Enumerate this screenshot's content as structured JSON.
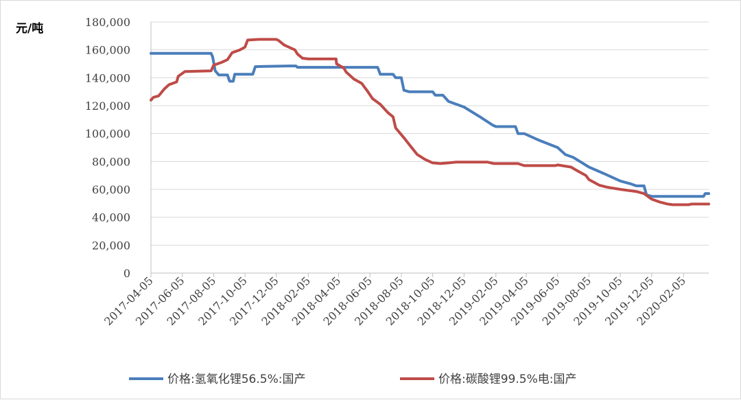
{
  "chart_data": {
    "type": "line",
    "ylabel": "元/吨",
    "ylim": [
      0,
      180000
    ],
    "yticks": [
      0,
      20000,
      40000,
      60000,
      80000,
      100000,
      120000,
      140000,
      160000,
      180000
    ],
    "ytick_labels": [
      "0",
      "20,000",
      "40,000",
      "60,000",
      "80,000",
      "100,000",
      "120,000",
      "140,000",
      "160,000",
      "180,000"
    ],
    "xlim": [
      "2017-04-05",
      "2020-03-25"
    ],
    "xticks": [
      "2017-04-05",
      "2017-06-05",
      "2017-08-05",
      "2017-10-05",
      "2017-12-05",
      "2018-02-05",
      "2018-04-05",
      "2018-06-05",
      "2018-08-05",
      "2018-10-05",
      "2018-12-05",
      "2019-02-05",
      "2019-04-05",
      "2019-06-05",
      "2019-08-05",
      "2019-10-05",
      "2019-12-05",
      "2020-02-05"
    ],
    "grid": "horizontal",
    "legend_position": "bottom",
    "series": [
      {
        "name": "价格:氢氧化锂56.5%:国产",
        "color": "#4a7ebb",
        "points": [
          [
            "2017-04-05",
            157500
          ],
          [
            "2017-07-31",
            157500
          ],
          [
            "2017-08-03",
            155000
          ],
          [
            "2017-08-08",
            145000
          ],
          [
            "2017-08-15",
            142000
          ],
          [
            "2017-09-01",
            142000
          ],
          [
            "2017-09-05",
            137500
          ],
          [
            "2017-09-12",
            137500
          ],
          [
            "2017-09-15",
            142500
          ],
          [
            "2017-10-20",
            142500
          ],
          [
            "2017-10-25",
            148000
          ],
          [
            "2017-12-31",
            148500
          ],
          [
            "2018-01-12",
            148500
          ],
          [
            "2018-01-15",
            147500
          ],
          [
            "2018-06-20",
            147500
          ],
          [
            "2018-06-25",
            142500
          ],
          [
            "2018-07-20",
            142500
          ],
          [
            "2018-07-25",
            140000
          ],
          [
            "2018-08-05",
            140000
          ],
          [
            "2018-08-10",
            131000
          ],
          [
            "2018-08-20",
            130000
          ],
          [
            "2018-10-05",
            130000
          ],
          [
            "2018-10-10",
            127500
          ],
          [
            "2018-10-25",
            127500
          ],
          [
            "2018-11-05",
            123000
          ],
          [
            "2018-12-05",
            119000
          ],
          [
            "2019-01-05",
            112000
          ],
          [
            "2019-01-30",
            106000
          ],
          [
            "2019-02-05",
            105000
          ],
          [
            "2019-03-15",
            105000
          ],
          [
            "2019-03-20",
            100000
          ],
          [
            "2019-04-01",
            100000
          ],
          [
            "2019-05-01",
            95000
          ],
          [
            "2019-06-05",
            90000
          ],
          [
            "2019-06-20",
            85000
          ],
          [
            "2019-07-05",
            83000
          ],
          [
            "2019-08-05",
            76000
          ],
          [
            "2019-09-05",
            71000
          ],
          [
            "2019-10-05",
            66000
          ],
          [
            "2019-10-25",
            64000
          ],
          [
            "2019-11-05",
            62500
          ],
          [
            "2019-11-20",
            62500
          ],
          [
            "2019-11-25",
            56000
          ],
          [
            "2019-12-05",
            55000
          ],
          [
            "2020-03-15",
            55000
          ],
          [
            "2020-03-18",
            57000
          ],
          [
            "2020-03-25",
            57000
          ]
        ]
      },
      {
        "name": "价格:碳酸锂99.5%电:国产",
        "color": "#be4b48",
        "points": [
          [
            "2017-04-05",
            124000
          ],
          [
            "2017-04-10",
            126000
          ],
          [
            "2017-04-20",
            127000
          ],
          [
            "2017-05-01",
            132000
          ],
          [
            "2017-05-10",
            135000
          ],
          [
            "2017-05-25",
            137000
          ],
          [
            "2017-05-28",
            141000
          ],
          [
            "2017-06-10",
            144500
          ],
          [
            "2017-07-31",
            145000
          ],
          [
            "2017-08-05",
            149000
          ],
          [
            "2017-08-20",
            151000
          ],
          [
            "2017-09-01",
            153000
          ],
          [
            "2017-09-10",
            158000
          ],
          [
            "2017-09-25",
            160000
          ],
          [
            "2017-10-05",
            162000
          ],
          [
            "2017-10-10",
            167000
          ],
          [
            "2017-11-01",
            167500
          ],
          [
            "2017-12-05",
            167500
          ],
          [
            "2017-12-10",
            166500
          ],
          [
            "2017-12-20",
            163500
          ],
          [
            "2018-01-10",
            160000
          ],
          [
            "2018-01-15",
            157000
          ],
          [
            "2018-01-25",
            154000
          ],
          [
            "2018-02-05",
            153500
          ],
          [
            "2018-03-31",
            153500
          ],
          [
            "2018-04-01",
            150000
          ],
          [
            "2018-04-15",
            147000
          ],
          [
            "2018-04-20",
            144000
          ],
          [
            "2018-05-05",
            139000
          ],
          [
            "2018-05-20",
            136000
          ],
          [
            "2018-06-01",
            130000
          ],
          [
            "2018-06-10",
            125000
          ],
          [
            "2018-06-25",
            121000
          ],
          [
            "2018-07-10",
            115000
          ],
          [
            "2018-07-20",
            112000
          ],
          [
            "2018-07-25",
            104000
          ],
          [
            "2018-08-10",
            97000
          ],
          [
            "2018-08-25",
            90000
          ],
          [
            "2018-09-05",
            85000
          ],
          [
            "2018-09-20",
            81500
          ],
          [
            "2018-10-05",
            79000
          ],
          [
            "2018-10-20",
            78500
          ],
          [
            "2018-11-05",
            79000
          ],
          [
            "2018-11-20",
            79500
          ],
          [
            "2019-01-20",
            79500
          ],
          [
            "2019-02-01",
            78500
          ],
          [
            "2019-03-20",
            78500
          ],
          [
            "2019-04-01",
            77000
          ],
          [
            "2019-06-01",
            77000
          ],
          [
            "2019-06-05",
            77500
          ],
          [
            "2019-07-01",
            76000
          ],
          [
            "2019-07-15",
            73000
          ],
          [
            "2019-07-30",
            70000
          ],
          [
            "2019-08-05",
            67000
          ],
          [
            "2019-08-25",
            63000
          ],
          [
            "2019-09-10",
            61500
          ],
          [
            "2019-10-05",
            60000
          ],
          [
            "2019-11-05",
            58500
          ],
          [
            "2019-11-20",
            57000
          ],
          [
            "2019-12-05",
            53000
          ],
          [
            "2019-12-20",
            51000
          ],
          [
            "2020-01-05",
            49500
          ],
          [
            "2020-01-15",
            49000
          ],
          [
            "2020-02-15",
            49000
          ],
          [
            "2020-02-20",
            49500
          ],
          [
            "2020-03-25",
            49500
          ]
        ]
      }
    ]
  }
}
